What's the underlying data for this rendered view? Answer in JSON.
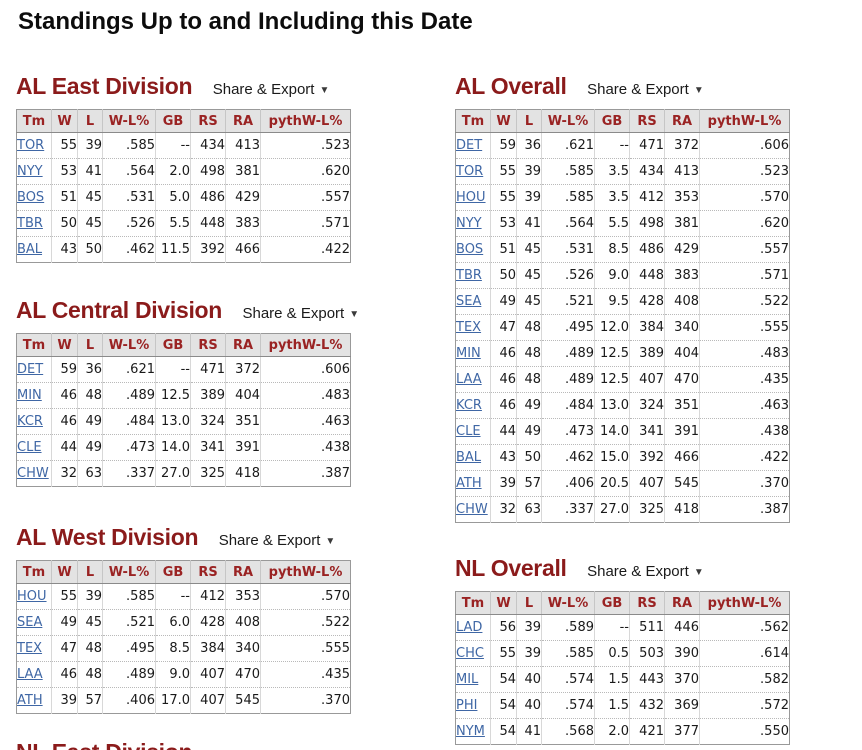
{
  "page_title": "Standings Up to and Including this Date",
  "share": {
    "label": "Share & Export",
    "caret": "▼"
  },
  "columns": [
    "Tm",
    "W",
    "L",
    "W-L%",
    "GB",
    "RS",
    "RA",
    "pythW-L%"
  ],
  "colors": {
    "heading": "#8b1b1b",
    "table_header_text": "#9a2323",
    "table_header_bg": "#e3e3e3",
    "team_link": "#3f67a5"
  },
  "tables": [
    {
      "id": "al-east-division",
      "title": "AL East Division",
      "rows": [
        [
          "TOR",
          "55",
          "39",
          ".585",
          "--",
          "434",
          "413",
          ".523"
        ],
        [
          "NYY",
          "53",
          "41",
          ".564",
          "2.0",
          "498",
          "381",
          ".620"
        ],
        [
          "BOS",
          "51",
          "45",
          ".531",
          "5.0",
          "486",
          "429",
          ".557"
        ],
        [
          "TBR",
          "50",
          "45",
          ".526",
          "5.5",
          "448",
          "383",
          ".571"
        ],
        [
          "BAL",
          "43",
          "50",
          ".462",
          "11.5",
          "392",
          "466",
          ".422"
        ]
      ]
    },
    {
      "id": "al-central-division",
      "title": "AL Central Division",
      "rows": [
        [
          "DET",
          "59",
          "36",
          ".621",
          "--",
          "471",
          "372",
          ".606"
        ],
        [
          "MIN",
          "46",
          "48",
          ".489",
          "12.5",
          "389",
          "404",
          ".483"
        ],
        [
          "KCR",
          "46",
          "49",
          ".484",
          "13.0",
          "324",
          "351",
          ".463"
        ],
        [
          "CLE",
          "44",
          "49",
          ".473",
          "14.0",
          "341",
          "391",
          ".438"
        ],
        [
          "CHW",
          "32",
          "63",
          ".337",
          "27.0",
          "325",
          "418",
          ".387"
        ]
      ]
    },
    {
      "id": "al-west-division",
      "title": "AL West Division",
      "rows": [
        [
          "HOU",
          "55",
          "39",
          ".585",
          "--",
          "412",
          "353",
          ".570"
        ],
        [
          "SEA",
          "49",
          "45",
          ".521",
          "6.0",
          "428",
          "408",
          ".522"
        ],
        [
          "TEX",
          "47",
          "48",
          ".495",
          "8.5",
          "384",
          "340",
          ".555"
        ],
        [
          "LAA",
          "46",
          "48",
          ".489",
          "9.0",
          "407",
          "470",
          ".435"
        ],
        [
          "ATH",
          "39",
          "57",
          ".406",
          "17.0",
          "407",
          "545",
          ".370"
        ]
      ]
    },
    {
      "id": "al-overall",
      "title": "AL Overall",
      "rows": [
        [
          "DET",
          "59",
          "36",
          ".621",
          "--",
          "471",
          "372",
          ".606"
        ],
        [
          "TOR",
          "55",
          "39",
          ".585",
          "3.5",
          "434",
          "413",
          ".523"
        ],
        [
          "HOU",
          "55",
          "39",
          ".585",
          "3.5",
          "412",
          "353",
          ".570"
        ],
        [
          "NYY",
          "53",
          "41",
          ".564",
          "5.5",
          "498",
          "381",
          ".620"
        ],
        [
          "BOS",
          "51",
          "45",
          ".531",
          "8.5",
          "486",
          "429",
          ".557"
        ],
        [
          "TBR",
          "50",
          "45",
          ".526",
          "9.0",
          "448",
          "383",
          ".571"
        ],
        [
          "SEA",
          "49",
          "45",
          ".521",
          "9.5",
          "428",
          "408",
          ".522"
        ],
        [
          "TEX",
          "47",
          "48",
          ".495",
          "12.0",
          "384",
          "340",
          ".555"
        ],
        [
          "MIN",
          "46",
          "48",
          ".489",
          "12.5",
          "389",
          "404",
          ".483"
        ],
        [
          "LAA",
          "46",
          "48",
          ".489",
          "12.5",
          "407",
          "470",
          ".435"
        ],
        [
          "KCR",
          "46",
          "49",
          ".484",
          "13.0",
          "324",
          "351",
          ".463"
        ],
        [
          "CLE",
          "44",
          "49",
          ".473",
          "14.0",
          "341",
          "391",
          ".438"
        ],
        [
          "BAL",
          "43",
          "50",
          ".462",
          "15.0",
          "392",
          "466",
          ".422"
        ],
        [
          "ATH",
          "39",
          "57",
          ".406",
          "20.5",
          "407",
          "545",
          ".370"
        ],
        [
          "CHW",
          "32",
          "63",
          ".337",
          "27.0",
          "325",
          "418",
          ".387"
        ]
      ]
    },
    {
      "id": "nl-overall",
      "title": "NL Overall",
      "rows": [
        [
          "LAD",
          "56",
          "39",
          ".589",
          "--",
          "511",
          "446",
          ".562"
        ],
        [
          "CHC",
          "55",
          "39",
          ".585",
          "0.5",
          "503",
          "390",
          ".614"
        ],
        [
          "MIL",
          "54",
          "40",
          ".574",
          "1.5",
          "443",
          "370",
          ".582"
        ],
        [
          "PHI",
          "54",
          "40",
          ".574",
          "1.5",
          "432",
          "369",
          ".572"
        ],
        [
          "NYM",
          "54",
          "41",
          ".568",
          "2.0",
          "421",
          "377",
          ".550"
        ]
      ]
    }
  ],
  "clipped_heading": "NL East Division"
}
